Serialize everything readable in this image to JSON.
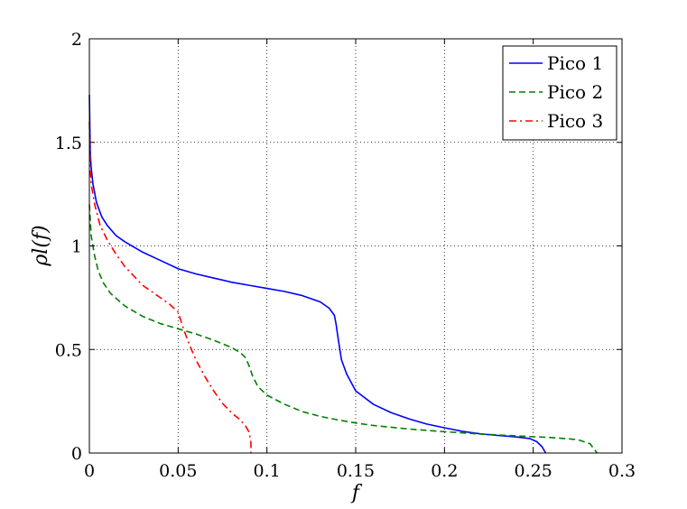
{
  "chart_data": {
    "type": "line",
    "xlabel": "f",
    "ylabel": "ρl(f)",
    "xlim": [
      0,
      0.3
    ],
    "ylim": [
      0,
      2
    ],
    "xticks": [
      0,
      0.05,
      0.1,
      0.15,
      0.2,
      0.25,
      0.3
    ],
    "xtick_labels": [
      "0",
      "0.05",
      "0.1",
      "0.15",
      "0.2",
      "0.25",
      "0.3"
    ],
    "yticks": [
      0,
      0.5,
      1,
      1.5,
      2
    ],
    "ytick_labels": [
      "0",
      "0.5",
      "1",
      "1.5",
      "2"
    ],
    "grid": true,
    "legend_position": "top-right",
    "series": [
      {
        "name": "Pico 1",
        "color": "#0000ff",
        "dash": "solid",
        "points": [
          [
            0.0,
            1.73
          ],
          [
            0.0005,
            1.45
          ],
          [
            0.001,
            1.38
          ],
          [
            0.002,
            1.3
          ],
          [
            0.004,
            1.21
          ],
          [
            0.007,
            1.14
          ],
          [
            0.01,
            1.1
          ],
          [
            0.015,
            1.05
          ],
          [
            0.02,
            1.02
          ],
          [
            0.03,
            0.97
          ],
          [
            0.04,
            0.93
          ],
          [
            0.05,
            0.89
          ],
          [
            0.06,
            0.865
          ],
          [
            0.07,
            0.845
          ],
          [
            0.08,
            0.825
          ],
          [
            0.09,
            0.81
          ],
          [
            0.1,
            0.795
          ],
          [
            0.11,
            0.78
          ],
          [
            0.12,
            0.76
          ],
          [
            0.13,
            0.73
          ],
          [
            0.135,
            0.7
          ],
          [
            0.138,
            0.665
          ],
          [
            0.139,
            0.62
          ],
          [
            0.14,
            0.56
          ],
          [
            0.142,
            0.45
          ],
          [
            0.145,
            0.38
          ],
          [
            0.15,
            0.3
          ],
          [
            0.16,
            0.235
          ],
          [
            0.17,
            0.195
          ],
          [
            0.18,
            0.165
          ],
          [
            0.19,
            0.14
          ],
          [
            0.2,
            0.122
          ],
          [
            0.21,
            0.105
          ],
          [
            0.22,
            0.093
          ],
          [
            0.23,
            0.085
          ],
          [
            0.24,
            0.078
          ],
          [
            0.248,
            0.07
          ],
          [
            0.252,
            0.055
          ],
          [
            0.255,
            0.03
          ],
          [
            0.257,
            0.0
          ]
        ]
      },
      {
        "name": "Pico 2",
        "color": "#008000",
        "dash": "dashed",
        "points": [
          [
            0.0,
            1.2
          ],
          [
            0.001,
            1.05
          ],
          [
            0.003,
            0.95
          ],
          [
            0.005,
            0.88
          ],
          [
            0.008,
            0.82
          ],
          [
            0.012,
            0.77
          ],
          [
            0.02,
            0.71
          ],
          [
            0.03,
            0.66
          ],
          [
            0.04,
            0.625
          ],
          [
            0.05,
            0.6
          ],
          [
            0.06,
            0.575
          ],
          [
            0.07,
            0.545
          ],
          [
            0.08,
            0.51
          ],
          [
            0.085,
            0.485
          ],
          [
            0.088,
            0.46
          ],
          [
            0.09,
            0.42
          ],
          [
            0.092,
            0.37
          ],
          [
            0.095,
            0.32
          ],
          [
            0.1,
            0.28
          ],
          [
            0.11,
            0.235
          ],
          [
            0.12,
            0.2
          ],
          [
            0.13,
            0.177
          ],
          [
            0.14,
            0.16
          ],
          [
            0.15,
            0.145
          ],
          [
            0.16,
            0.133
          ],
          [
            0.18,
            0.116
          ],
          [
            0.2,
            0.103
          ],
          [
            0.22,
            0.092
          ],
          [
            0.24,
            0.083
          ],
          [
            0.26,
            0.075
          ],
          [
            0.275,
            0.065
          ],
          [
            0.282,
            0.045
          ],
          [
            0.286,
            0.0
          ]
        ]
      },
      {
        "name": "Pico 3",
        "color": "#ff0000",
        "dash": "dashdot",
        "points": [
          [
            0.0,
            1.6
          ],
          [
            0.0005,
            1.38
          ],
          [
            0.001,
            1.3
          ],
          [
            0.003,
            1.2
          ],
          [
            0.006,
            1.1
          ],
          [
            0.01,
            1.03
          ],
          [
            0.015,
            0.96
          ],
          [
            0.02,
            0.9
          ],
          [
            0.03,
            0.81
          ],
          [
            0.04,
            0.75
          ],
          [
            0.045,
            0.72
          ],
          [
            0.05,
            0.68
          ],
          [
            0.053,
            0.6
          ],
          [
            0.056,
            0.53
          ],
          [
            0.06,
            0.45
          ],
          [
            0.065,
            0.37
          ],
          [
            0.07,
            0.3
          ],
          [
            0.075,
            0.24
          ],
          [
            0.08,
            0.195
          ],
          [
            0.085,
            0.16
          ],
          [
            0.088,
            0.13
          ],
          [
            0.09,
            0.1
          ],
          [
            0.091,
            0.05
          ],
          [
            0.091,
            0.0
          ]
        ]
      }
    ]
  }
}
